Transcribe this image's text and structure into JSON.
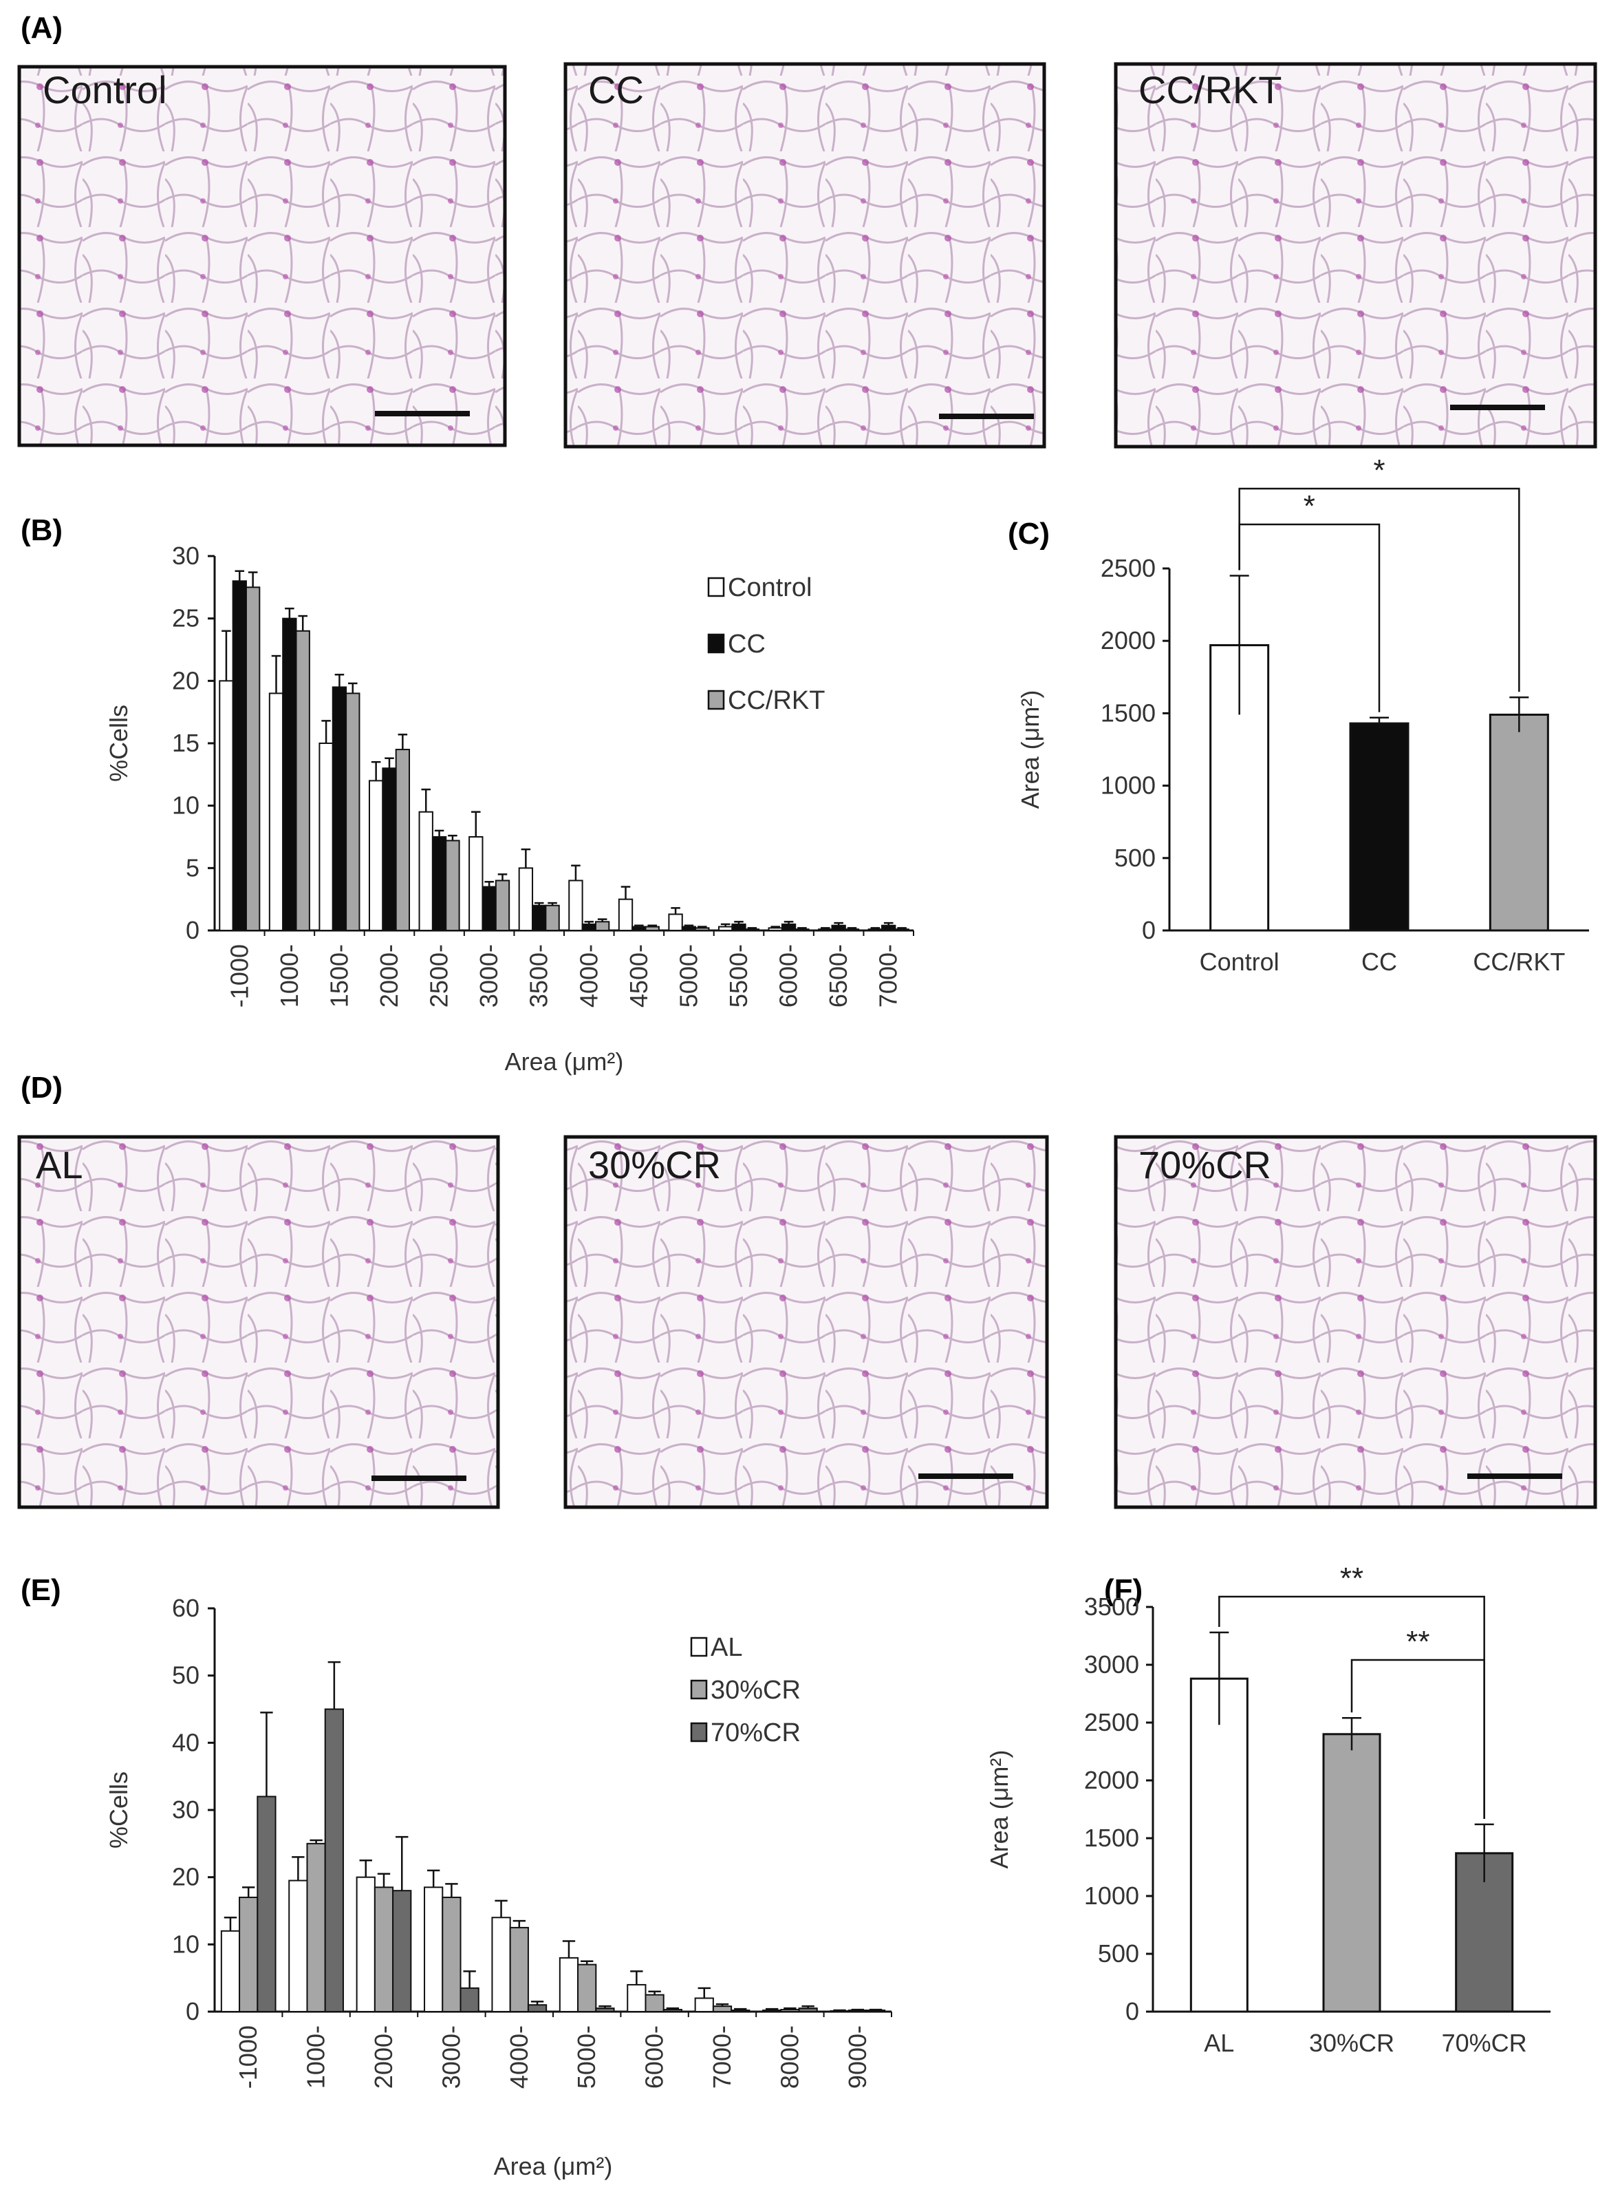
{
  "panels": {
    "A": "(A)",
    "B": "(B)",
    "C": "(C)",
    "D": "(D)",
    "E": "(E)",
    "F": "(F)"
  },
  "micrographs_top": [
    "Control",
    "CC",
    "CC/RKT"
  ],
  "micrographs_bottom": [
    "AL",
    "30%CR",
    "70%CR"
  ],
  "colors": {
    "white_bar": "#ffffff",
    "black_bar": "#0d0d0d",
    "light_gray_bar": "#a6a6a6",
    "dark_gray_bar": "#6b6b6b",
    "tissue_bg": "#f7f1f6",
    "stain": "#b04aa8"
  },
  "chart_data": [
    {
      "id": "B",
      "type": "bar",
      "title": "",
      "xlabel": "Area (μm²)",
      "ylabel": "%Cells",
      "ylim": [
        0,
        30
      ],
      "yticks": [
        0,
        5,
        10,
        15,
        20,
        25,
        30
      ],
      "categories": [
        "-1000",
        "1000-",
        "1500-",
        "2000-",
        "2500-",
        "3000-",
        "3500-",
        "4000-",
        "4500-",
        "5000-",
        "5500-",
        "6000-",
        "6500-",
        "7000-"
      ],
      "legend_position": "top-right",
      "series": [
        {
          "name": "Control",
          "color": "#ffffff",
          "values": [
            20.0,
            19.0,
            15.0,
            12.0,
            9.5,
            7.5,
            5.0,
            4.0,
            2.5,
            1.3,
            0.3,
            0.2,
            0.1,
            0.1
          ],
          "errors": [
            4.0,
            3.0,
            1.8,
            1.5,
            1.8,
            2.0,
            1.5,
            1.2,
            1.0,
            0.5,
            0.2,
            0.1,
            0.1,
            0.1
          ]
        },
        {
          "name": "CC",
          "color": "#0d0d0d",
          "values": [
            28.0,
            25.0,
            19.5,
            13.0,
            7.5,
            3.5,
            2.0,
            0.5,
            0.3,
            0.3,
            0.5,
            0.5,
            0.4,
            0.4
          ],
          "errors": [
            0.8,
            0.8,
            1.0,
            0.8,
            0.5,
            0.4,
            0.2,
            0.2,
            0.1,
            0.1,
            0.2,
            0.2,
            0.2,
            0.2
          ]
        },
        {
          "name": "CC/RKT",
          "color": "#a6a6a6",
          "values": [
            27.5,
            24.0,
            19.0,
            14.5,
            7.2,
            4.0,
            2.0,
            0.7,
            0.3,
            0.2,
            0.1,
            0.1,
            0.1,
            0.1
          ],
          "errors": [
            1.2,
            1.2,
            0.8,
            1.2,
            0.4,
            0.5,
            0.2,
            0.2,
            0.1,
            0.1,
            0.1,
            0.1,
            0.1,
            0.1
          ]
        }
      ]
    },
    {
      "id": "C",
      "type": "bar",
      "title": "",
      "xlabel": "",
      "ylabel": "Area (μm²)",
      "ylim": [
        0,
        2500
      ],
      "yticks": [
        0,
        500,
        1000,
        1500,
        2000,
        2500
      ],
      "categories": [
        "Control",
        "CC",
        "CC/RKT"
      ],
      "values": [
        1970,
        1430,
        1490
      ],
      "errors": [
        480,
        40,
        120
      ],
      "colors": [
        "#ffffff",
        "#0d0d0d",
        "#a6a6a6"
      ],
      "annotations": [
        {
          "from": "Control",
          "to": "CC",
          "label": "*"
        },
        {
          "from": "Control",
          "to": "CC/RKT",
          "label": "*"
        }
      ]
    },
    {
      "id": "E",
      "type": "bar",
      "title": "",
      "xlabel": "Area (μm²)",
      "ylabel": "%Cells",
      "ylim": [
        0,
        60
      ],
      "yticks": [
        0,
        10,
        20,
        30,
        40,
        50,
        60
      ],
      "categories": [
        "-1000",
        "1000-",
        "2000-",
        "3000-",
        "4000-",
        "5000-",
        "6000-",
        "7000-",
        "8000-",
        "9000-"
      ],
      "legend_position": "top-right",
      "series": [
        {
          "name": "AL",
          "color": "#ffffff",
          "values": [
            12.0,
            19.5,
            20.0,
            18.5,
            14.0,
            8.0,
            4.0,
            2.0,
            0.2,
            0.1
          ],
          "errors": [
            2.0,
            3.5,
            2.5,
            2.5,
            2.5,
            2.5,
            2.0,
            1.5,
            0.2,
            0.1
          ]
        },
        {
          "name": "30%CR",
          "color": "#a6a6a6",
          "values": [
            17.0,
            25.0,
            18.5,
            17.0,
            12.5,
            7.0,
            2.5,
            0.8,
            0.3,
            0.2
          ],
          "errors": [
            1.5,
            0.5,
            2.0,
            2.0,
            1.0,
            0.5,
            0.5,
            0.3,
            0.2,
            0.1
          ]
        },
        {
          "name": "70%CR",
          "color": "#6b6b6b",
          "values": [
            32.0,
            45.0,
            18.0,
            3.5,
            1.0,
            0.5,
            0.3,
            0.2,
            0.5,
            0.2
          ],
          "errors": [
            12.5,
            7.0,
            8.0,
            2.5,
            0.5,
            0.3,
            0.2,
            0.2,
            0.3,
            0.1
          ]
        }
      ]
    },
    {
      "id": "F",
      "type": "bar",
      "title": "",
      "xlabel": "",
      "ylabel": "Area (μm²)",
      "ylim": [
        0,
        3500
      ],
      "yticks": [
        0,
        500,
        1000,
        1500,
        2000,
        2500,
        3000,
        3500
      ],
      "categories": [
        "AL",
        "30%CR",
        "70%CR"
      ],
      "values": [
        2880,
        2400,
        1370
      ],
      "errors": [
        400,
        140,
        250
      ],
      "colors": [
        "#ffffff",
        "#a6a6a6",
        "#6b6b6b"
      ],
      "annotations": [
        {
          "from": "AL",
          "to": "70%CR",
          "label": "**"
        },
        {
          "from": "30%CR",
          "to": "70%CR",
          "label": "**"
        }
      ]
    }
  ]
}
